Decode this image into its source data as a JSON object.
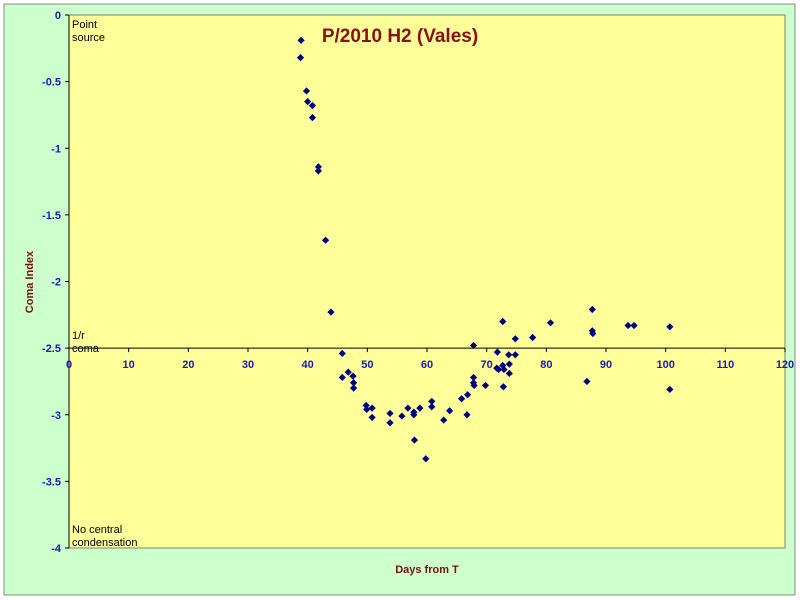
{
  "chart_data": {
    "type": "scatter",
    "title": "P/2010 H2 (Vales)",
    "xlabel": "Days from T",
    "ylabel": "Coma Index",
    "xlim": [
      0,
      120
    ],
    "ylim": [
      -4,
      0
    ],
    "x_ticks": [
      "0",
      "10",
      "20",
      "30",
      "40",
      "50",
      "60",
      "70",
      "80",
      "90",
      "100",
      "110",
      "120"
    ],
    "y_ticks": [
      "0",
      "-0.5",
      "-1",
      "-1.5",
      "-2",
      "-2.5",
      "-3",
      "-3.5",
      "-4"
    ],
    "grid": false,
    "legend": "none",
    "annotations": {
      "top": [
        "Point",
        "source"
      ],
      "middle": [
        "1/r",
        "coma"
      ],
      "bottom": [
        "No central",
        "condensation"
      ]
    },
    "colors": {
      "outer": "#ccffcc",
      "plot": "#ffff99",
      "marker": "#000080",
      "title": "#8b0f0f",
      "ticks": "#1a1ab8"
    },
    "points": [
      {
        "x": 38.9,
        "y": -0.19
      },
      {
        "x": 38.8,
        "y": -0.32
      },
      {
        "x": 39.8,
        "y": -0.57
      },
      {
        "x": 40.0,
        "y": -0.65
      },
      {
        "x": 40.8,
        "y": -0.68
      },
      {
        "x": 40.8,
        "y": -0.77
      },
      {
        "x": 41.8,
        "y": -1.14
      },
      {
        "x": 41.8,
        "y": -1.17
      },
      {
        "x": 43.0,
        "y": -1.69
      },
      {
        "x": 43.9,
        "y": -2.23
      },
      {
        "x": 45.8,
        "y": -2.54
      },
      {
        "x": 45.8,
        "y": -2.72
      },
      {
        "x": 46.8,
        "y": -2.68
      },
      {
        "x": 47.6,
        "y": -2.71
      },
      {
        "x": 47.7,
        "y": -2.76
      },
      {
        "x": 47.7,
        "y": -2.8
      },
      {
        "x": 49.8,
        "y": -2.93
      },
      {
        "x": 49.9,
        "y": -2.96
      },
      {
        "x": 50.8,
        "y": -2.95
      },
      {
        "x": 50.8,
        "y": -3.02
      },
      {
        "x": 53.8,
        "y": -2.99
      },
      {
        "x": 53.8,
        "y": -3.06
      },
      {
        "x": 55.8,
        "y": -3.01
      },
      {
        "x": 56.8,
        "y": -2.95
      },
      {
        "x": 57.8,
        "y": -2.98
      },
      {
        "x": 57.8,
        "y": -3.0
      },
      {
        "x": 57.9,
        "y": -3.19
      },
      {
        "x": 58.8,
        "y": -2.95
      },
      {
        "x": 59.8,
        "y": -3.33
      },
      {
        "x": 60.8,
        "y": -2.9
      },
      {
        "x": 60.8,
        "y": -2.94
      },
      {
        "x": 62.8,
        "y": -3.04
      },
      {
        "x": 63.8,
        "y": -2.97
      },
      {
        "x": 65.8,
        "y": -2.88
      },
      {
        "x": 66.7,
        "y": -3.0
      },
      {
        "x": 66.8,
        "y": -2.85
      },
      {
        "x": 67.8,
        "y": -2.48
      },
      {
        "x": 67.8,
        "y": -2.72
      },
      {
        "x": 67.8,
        "y": -2.76
      },
      {
        "x": 67.9,
        "y": -2.78
      },
      {
        "x": 69.8,
        "y": -2.78
      },
      {
        "x": 71.7,
        "y": -2.65
      },
      {
        "x": 71.8,
        "y": -2.53
      },
      {
        "x": 72.0,
        "y": -2.66
      },
      {
        "x": 72.7,
        "y": -2.3
      },
      {
        "x": 72.7,
        "y": -2.63
      },
      {
        "x": 72.8,
        "y": -2.79
      },
      {
        "x": 72.9,
        "y": -2.66
      },
      {
        "x": 73.7,
        "y": -2.55
      },
      {
        "x": 73.8,
        "y": -2.62
      },
      {
        "x": 73.8,
        "y": -2.69
      },
      {
        "x": 74.8,
        "y": -2.43
      },
      {
        "x": 74.8,
        "y": -2.55
      },
      {
        "x": 77.7,
        "y": -2.42
      },
      {
        "x": 80.7,
        "y": -2.31
      },
      {
        "x": 86.8,
        "y": -2.75
      },
      {
        "x": 87.7,
        "y": -2.21
      },
      {
        "x": 87.7,
        "y": -2.37
      },
      {
        "x": 87.8,
        "y": -2.39
      },
      {
        "x": 93.7,
        "y": -2.33
      },
      {
        "x": 94.7,
        "y": -2.33
      },
      {
        "x": 100.7,
        "y": -2.34
      },
      {
        "x": 100.7,
        "y": -2.81
      }
    ]
  }
}
